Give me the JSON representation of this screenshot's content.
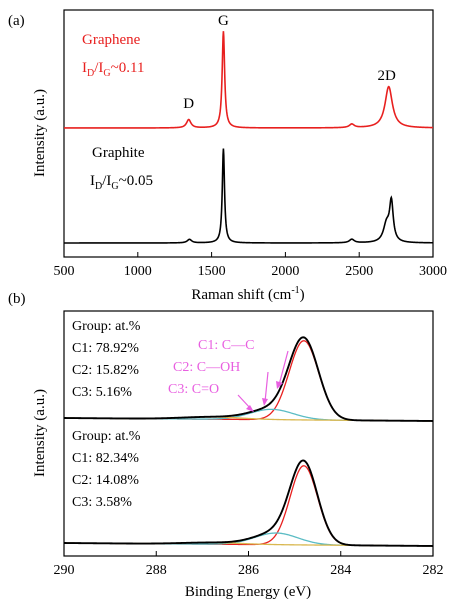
{
  "chart_data": [
    {
      "type": "line",
      "panel_label": "(a)",
      "xlabel_main": "Raman shift (cm",
      "xlabel_sup": "-1",
      "xlabel_end": ")",
      "ylabel": "Intensity (a.u.)",
      "xlim": [
        500,
        3000
      ],
      "xticks": [
        "500",
        "1000",
        "1500",
        "2000",
        "2500",
        "3000"
      ],
      "xtick_values": [
        500,
        1000,
        1500,
        2000,
        2500,
        3000
      ],
      "colors": {
        "graphene": "#e8201f",
        "graphite": "#000000"
      },
      "peaks": [
        {
          "label": "D",
          "x": 1345
        },
        {
          "label": "G",
          "x": 1580
        },
        {
          "label": "2D",
          "x": 2700
        }
      ],
      "series": [
        {
          "name": "Graphene",
          "ratio_label_sub": "D",
          "ratio_label_sub2": "G",
          "ratio_value": "~0.11",
          "baseline": 0,
          "bands": [
            {
              "center": 1345,
              "width": 18,
              "height": 0.07
            },
            {
              "center": 1580,
              "width": 10,
              "height": 0.82
            },
            {
              "center": 2450,
              "width": 20,
              "height": 0.03
            },
            {
              "center": 2700,
              "width": 30,
              "height": 0.35
            }
          ]
        },
        {
          "name": "Graphite",
          "ratio_label_sub": "D",
          "ratio_label_sub2": "G",
          "ratio_value": "~0.05",
          "baseline": 0,
          "bands": [
            {
              "center": 1350,
              "width": 18,
              "height": 0.03
            },
            {
              "center": 1580,
              "width": 9,
              "height": 0.8
            },
            {
              "center": 2450,
              "width": 20,
              "height": 0.03
            },
            {
              "center": 2685,
              "width": 25,
              "height": 0.15
            },
            {
              "center": 2718,
              "width": 15,
              "height": 0.33
            }
          ]
        }
      ]
    },
    {
      "type": "line",
      "panel_label": "(b)",
      "xlabel": "Binding Energy (eV)",
      "ylabel": "Intensity (a.u.)",
      "xlim": [
        290,
        282
      ],
      "xticks": [
        "290",
        "288",
        "286",
        "284",
        "282"
      ],
      "xtick_values": [
        290,
        288,
        286,
        284,
        282
      ],
      "colors": {
        "envelope": "#000000",
        "c1": "#e8201f",
        "c2": "#5bbcc4",
        "c3": "#d9b850",
        "annotation": "#e85fe0"
      },
      "annotations": [
        {
          "text": "C1: C—C",
          "x": 284.9
        },
        {
          "text": "C2: C—OH",
          "x": 285.4
        },
        {
          "text": "C3: C=O",
          "x": 285.9
        }
      ],
      "spectra": [
        {
          "group_title": "Group: at.%",
          "legend": [
            "C1: 78.92%",
            "C2: 15.82%",
            "C3: 5.16%"
          ],
          "components": [
            {
              "name": "C1",
              "center": 284.8,
              "fwhm": 0.75,
              "height": 0.88
            },
            {
              "name": "C2",
              "center": 285.5,
              "fwhm": 1.1,
              "height": 0.115
            },
            {
              "name": "C3",
              "center": 286.8,
              "fwhm": 1.5,
              "height": 0.025
            }
          ]
        },
        {
          "group_title": "Group: at.%",
          "legend": [
            "C1: 82.34%",
            "C2: 14.08%",
            "C3: 3.58%"
          ],
          "components": [
            {
              "name": "C1",
              "center": 284.8,
              "fwhm": 0.7,
              "height": 0.88
            },
            {
              "name": "C2",
              "center": 285.4,
              "fwhm": 1.1,
              "height": 0.13
            },
            {
              "name": "C3",
              "center": 286.8,
              "fwhm": 1.5,
              "height": 0.018
            }
          ]
        }
      ]
    }
  ]
}
